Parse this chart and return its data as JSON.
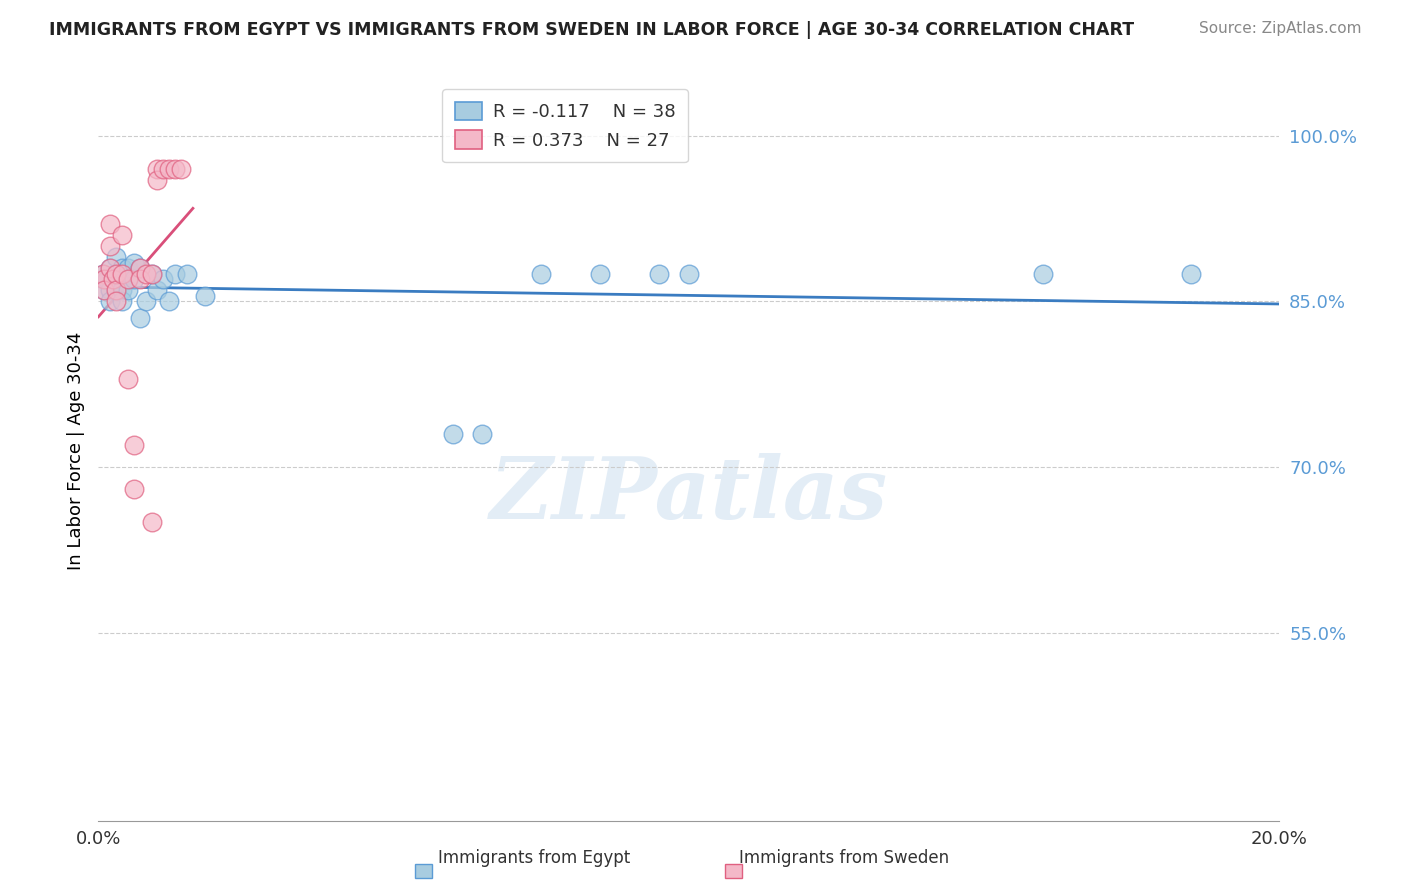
{
  "title": "IMMIGRANTS FROM EGYPT VS IMMIGRANTS FROM SWEDEN IN LABOR FORCE | AGE 30-34 CORRELATION CHART",
  "source": "Source: ZipAtlas.com",
  "ylabel": "In Labor Force | Age 30-34",
  "xlim": [
    0.0,
    0.2
  ],
  "ylim": [
    0.38,
    1.05
  ],
  "legend_r_egypt": "-0.117",
  "legend_n_egypt": "38",
  "legend_r_sweden": "0.373",
  "legend_n_sweden": "27",
  "color_egypt_fill": "#a8cce0",
  "color_egypt_edge": "#5b9bd5",
  "color_sweden_fill": "#f4b8c8",
  "color_sweden_edge": "#e06080",
  "color_egypt_line": "#3a7cc1",
  "color_sweden_line": "#d94f7a",
  "color_grid": "#cccccc",
  "color_yticks": "#5b9bd5",
  "watermark_text": "ZIPatlas",
  "ytick_positions": [
    0.55,
    0.7,
    0.85,
    1.0
  ],
  "ytick_labels": [
    "55.0%",
    "70.0%",
    "85.0%",
    "100.0%"
  ],
  "egypt_x": [
    0.0008,
    0.001,
    0.001,
    0.0015,
    0.002,
    0.002,
    0.002,
    0.0025,
    0.003,
    0.003,
    0.003,
    0.004,
    0.004,
    0.004,
    0.004,
    0.005,
    0.005,
    0.005,
    0.006,
    0.006,
    0.007,
    0.007,
    0.008,
    0.009,
    0.01,
    0.011,
    0.012,
    0.013,
    0.015,
    0.018,
    0.06,
    0.065,
    0.075,
    0.085,
    0.095,
    0.1,
    0.16,
    0.185
  ],
  "egypt_y": [
    0.875,
    0.87,
    0.86,
    0.87,
    0.88,
    0.86,
    0.85,
    0.87,
    0.89,
    0.875,
    0.86,
    0.88,
    0.87,
    0.86,
    0.85,
    0.88,
    0.87,
    0.86,
    0.885,
    0.87,
    0.88,
    0.835,
    0.85,
    0.875,
    0.86,
    0.87,
    0.85,
    0.875,
    0.875,
    0.855,
    0.73,
    0.73,
    0.875,
    0.875,
    0.875,
    0.875,
    0.875,
    0.875
  ],
  "sweden_x": [
    0.0008,
    0.001,
    0.001,
    0.002,
    0.002,
    0.002,
    0.0025,
    0.003,
    0.003,
    0.003,
    0.004,
    0.004,
    0.005,
    0.005,
    0.006,
    0.006,
    0.007,
    0.007,
    0.008,
    0.009,
    0.009,
    0.01,
    0.01,
    0.011,
    0.012,
    0.013,
    0.014
  ],
  "sweden_y": [
    0.875,
    0.87,
    0.86,
    0.92,
    0.9,
    0.88,
    0.87,
    0.875,
    0.86,
    0.85,
    0.91,
    0.875,
    0.87,
    0.78,
    0.72,
    0.68,
    0.88,
    0.87,
    0.875,
    0.65,
    0.875,
    0.97,
    0.96,
    0.97,
    0.97,
    0.97,
    0.97
  ]
}
